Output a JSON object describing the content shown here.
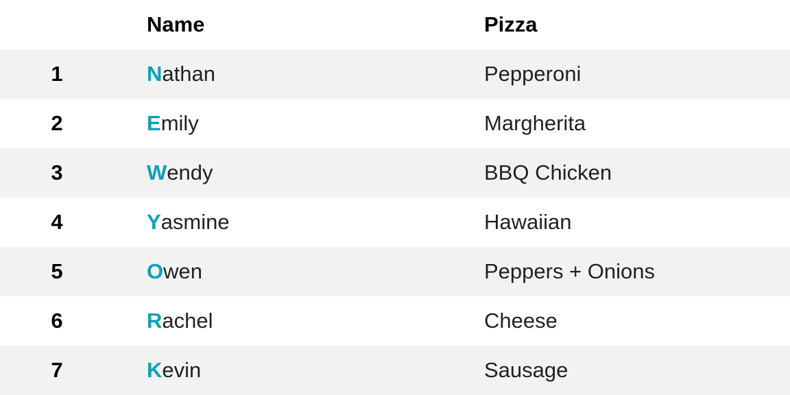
{
  "accent_color": "#0aa0b8",
  "header": {
    "name": "Name",
    "pizza": "Pizza"
  },
  "rows": [
    {
      "num": "1",
      "initial": "N",
      "rest": "athan",
      "pizza": "Pepperoni"
    },
    {
      "num": "2",
      "initial": "E",
      "rest": "mily",
      "pizza": "Margherita"
    },
    {
      "num": "3",
      "initial": "W",
      "rest": "endy",
      "pizza": "BBQ Chicken"
    },
    {
      "num": "4",
      "initial": "Y",
      "rest": "asmine",
      "pizza": "Hawaiian"
    },
    {
      "num": "5",
      "initial": "O",
      "rest": "wen",
      "pizza": "Peppers + Onions"
    },
    {
      "num": "6",
      "initial": "R",
      "rest": "achel",
      "pizza": "Cheese"
    },
    {
      "num": "7",
      "initial": "K",
      "rest": "evin",
      "pizza": "Sausage"
    }
  ]
}
